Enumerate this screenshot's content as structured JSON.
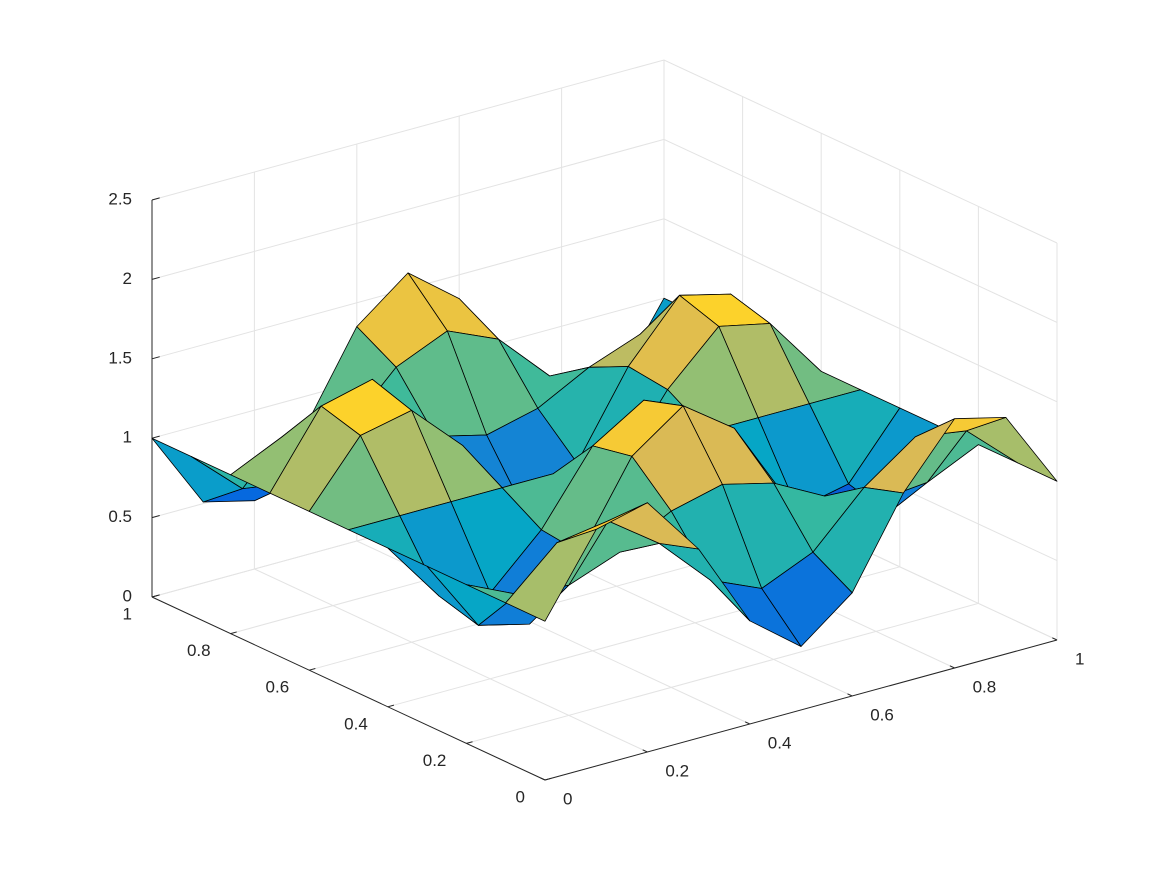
{
  "chart_data": {
    "type": "surface",
    "x": [
      0,
      0.1,
      0.2,
      0.3,
      0.4,
      0.5,
      0.6,
      0.7,
      0.8,
      0.9,
      1
    ],
    "y": [
      0,
      0.1,
      0.2,
      0.3,
      0.4,
      0.5,
      0.6,
      0.7,
      0.8,
      0.9,
      1
    ],
    "z": [
      [
        1,
        1.49,
        1.57,
        1.19,
        0.65,
        0.4,
        0.65,
        1.19,
        1.57,
        1.49,
        1
      ],
      [
        1,
        1.29,
        1.34,
        1.11,
        0.79,
        0.65,
        0.79,
        1.11,
        1.34,
        1.29,
        1
      ],
      [
        1,
        0.85,
        0.82,
        0.94,
        1.11,
        1.19,
        1.11,
        0.94,
        0.82,
        0.85,
        1
      ],
      [
        1,
        0.54,
        0.46,
        0.82,
        1.34,
        1.57,
        1.34,
        0.82,
        0.46,
        0.54,
        1
      ],
      [
        1,
        0.61,
        0.54,
        0.85,
        1.29,
        1.49,
        1.29,
        0.85,
        0.54,
        0.61,
        1
      ],
      [
        1,
        1,
        1,
        1,
        1,
        1,
        1,
        1,
        1,
        1,
        1
      ],
      [
        1,
        1.39,
        1.46,
        1.15,
        0.71,
        0.51,
        0.71,
        1.15,
        1.46,
        1.39,
        1
      ],
      [
        1,
        1.46,
        1.54,
        1.18,
        0.66,
        0.43,
        0.66,
        1.18,
        1.54,
        1.46,
        1
      ],
      [
        1,
        1.15,
        1.18,
        1.06,
        0.89,
        0.81,
        0.89,
        1.06,
        1.18,
        1.15,
        1
      ],
      [
        1,
        0.71,
        0.66,
        0.89,
        1.21,
        1.35,
        1.21,
        0.89,
        0.66,
        0.71,
        1
      ],
      [
        1,
        0.51,
        0.43,
        0.81,
        1.35,
        1.6,
        1.35,
        0.81,
        0.43,
        0.51,
        1
      ]
    ],
    "xlim": [
      0,
      1
    ],
    "ylim": [
      0,
      1
    ],
    "zlim": [
      0,
      2.5
    ],
    "xticks": [
      0,
      0.2,
      0.4,
      0.6,
      0.8,
      1
    ],
    "yticks": [
      0,
      0.2,
      0.4,
      0.6,
      0.8,
      1
    ],
    "zticks": [
      0,
      0.5,
      1,
      1.5,
      2,
      2.5
    ],
    "grid": true,
    "colormap": [
      "#352a87",
      "#0363e1",
      "#1485d4",
      "#06a7c6",
      "#38b99e",
      "#92bf73",
      "#d9ba56",
      "#fcce2e",
      "#f9fb0e"
    ]
  }
}
